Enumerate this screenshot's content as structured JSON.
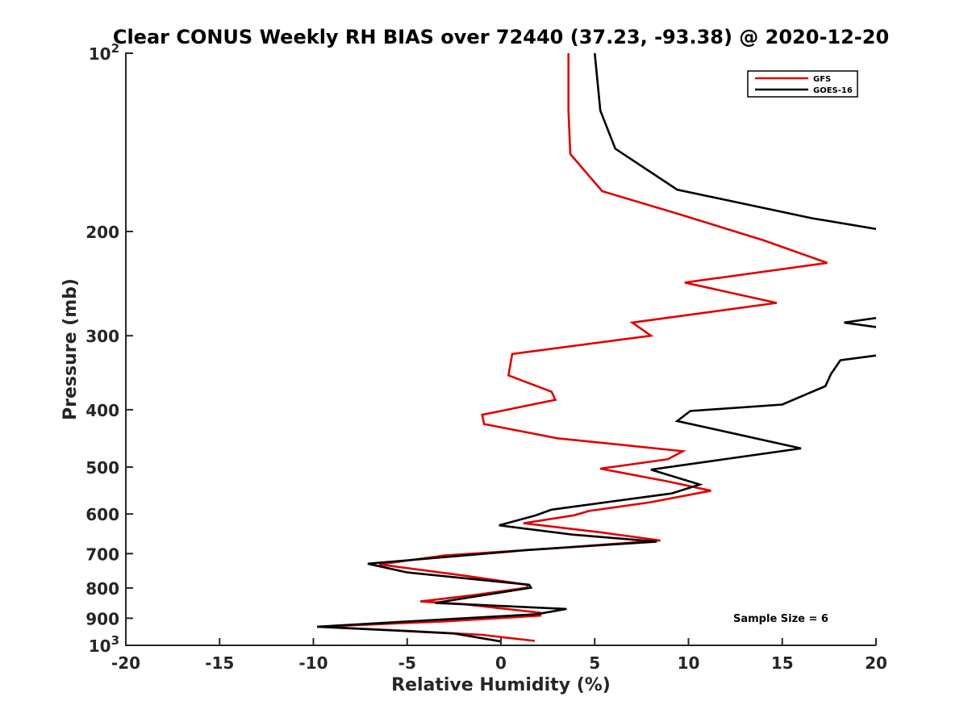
{
  "chart_data": {
    "type": "line",
    "title": "Clear CONUS Weekly RH BIAS over 72440 (37.23, -93.38) @ 2020-12-20",
    "xlabel": "Relative Humidity (%)",
    "ylabel": "Pressure (mb)",
    "xlim": [
      -20,
      20
    ],
    "ylim": [
      100,
      1000
    ],
    "yscale": "log",
    "y_reversed": true,
    "grid": false,
    "legend_position": "top-right",
    "annotation": "Sample Size = 6",
    "x_ticks": [
      -20,
      -15,
      -10,
      -5,
      0,
      5,
      10,
      15,
      20
    ],
    "x_tick_labels": [
      "-20",
      "-15",
      "-10",
      "-5",
      "0",
      "5",
      "10",
      "15",
      "20"
    ],
    "y_ticks": [
      100,
      200,
      300,
      400,
      500,
      600,
      700,
      800,
      900,
      1000
    ],
    "y_tick_labels": [
      {
        "base": "10",
        "exp": "2"
      },
      {
        "base": "200",
        "exp": ""
      },
      {
        "base": "300",
        "exp": ""
      },
      {
        "base": "400",
        "exp": ""
      },
      {
        "base": "500",
        "exp": ""
      },
      {
        "base": "600",
        "exp": ""
      },
      {
        "base": "700",
        "exp": ""
      },
      {
        "base": "800",
        "exp": ""
      },
      {
        "base": "900",
        "exp": ""
      },
      {
        "base": "10",
        "exp": "3"
      }
    ],
    "series": [
      {
        "name": "GFS",
        "color": "#e00000",
        "points": [
          [
            3.6,
            100
          ],
          [
            3.6,
            125
          ],
          [
            3.7,
            148
          ],
          [
            5.4,
            171
          ],
          [
            9.5,
            187
          ],
          [
            14,
            207
          ],
          [
            17.4,
            226
          ],
          [
            9.8,
            244
          ],
          [
            14.7,
            264
          ],
          [
            7,
            285
          ],
          [
            8,
            300
          ],
          [
            0.6,
            322
          ],
          [
            0.4,
            350
          ],
          [
            2.7,
            373
          ],
          [
            2.9,
            385
          ],
          [
            -1,
            408
          ],
          [
            -0.9,
            423
          ],
          [
            3,
            447
          ],
          [
            9.7,
            470
          ],
          [
            8.9,
            485
          ],
          [
            5.3,
            503
          ],
          [
            8.8,
            528
          ],
          [
            11.2,
            548
          ],
          [
            8,
            573
          ],
          [
            4.7,
            593
          ],
          [
            3.9,
            603
          ],
          [
            1.2,
            622
          ],
          [
            5.4,
            645
          ],
          [
            8.5,
            665
          ],
          [
            3,
            685
          ],
          [
            -3,
            705
          ],
          [
            -6.5,
            730
          ],
          [
            -2,
            762
          ],
          [
            1.4,
            790
          ],
          [
            1.4,
            799
          ],
          [
            -1.5,
            823
          ],
          [
            -4.3,
            843
          ],
          [
            -2,
            852
          ],
          [
            2.1,
            881
          ],
          [
            2.1,
            891
          ],
          [
            -3,
            911
          ],
          [
            -9.7,
            930
          ],
          [
            -5,
            945
          ],
          [
            -1,
            960
          ],
          [
            1.8,
            983
          ]
        ]
      },
      {
        "name": "GOES-16",
        "color": "#000000",
        "points": [
          [
            5,
            100
          ],
          [
            5.3,
            125
          ],
          [
            6.1,
            145
          ],
          [
            9.4,
            170
          ],
          [
            16.6,
            190
          ],
          [
            20,
            198
          ],
          null,
          [
            20,
            280
          ],
          [
            18.3,
            285
          ],
          [
            20,
            290
          ],
          null,
          [
            20,
            324
          ],
          [
            18.1,
            330
          ],
          [
            17.6,
            348
          ],
          [
            17.3,
            365
          ],
          [
            15,
            392
          ],
          [
            10.1,
            402
          ],
          [
            9.4,
            418
          ],
          [
            12.3,
            438
          ],
          [
            16,
            465
          ],
          [
            8,
            505
          ],
          [
            10.6,
            535
          ],
          [
            9.1,
            554
          ],
          [
            2.7,
            590
          ],
          [
            1.8,
            604
          ],
          [
            -0.1,
            627
          ],
          [
            3.8,
            650
          ],
          [
            8.3,
            668
          ],
          [
            1.5,
            690
          ],
          [
            -7.1,
            728
          ],
          [
            -5,
            753
          ],
          [
            1.5,
            790
          ],
          [
            1.6,
            799
          ],
          [
            -3.5,
            848
          ],
          [
            3.5,
            868
          ],
          [
            1.9,
            886
          ],
          [
            -3,
            904
          ],
          [
            -9.8,
            930
          ],
          [
            -2.5,
            955
          ],
          [
            0,
            985
          ]
        ]
      }
    ]
  }
}
